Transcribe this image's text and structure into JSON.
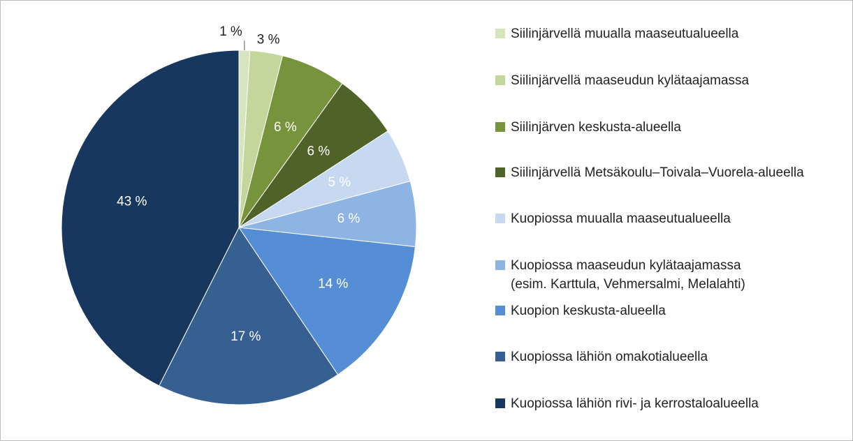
{
  "chart_data": {
    "type": "pie",
    "categories": [
      "Siilinjärvellä muualla maaseutualueella",
      "Siilinjärvellä maaseudun kylätaajamassa",
      "Siilinjärven keskusta-alueella",
      "Siilinjärvellä Metsäkoulu–Toivala–Vuorela-alueella",
      "Kuopiossa muualla maaseutualueella",
      "Kuopiossa maaseudun kylätaajamassa\n(esim. Karttula, Vehmersalmi, Melalahti)",
      "Kuopion keskusta-alueella",
      "Kuopiossa lähiön omakotialueella",
      "Kuopiossa lähiön rivi- ja kerrostaloalueella"
    ],
    "values": [
      1,
      3,
      6,
      6,
      5,
      6,
      14,
      17,
      43
    ],
    "value_labels": [
      "1 %",
      "3 %",
      "6 %",
      "6 %",
      "5 %",
      "6 %",
      "14 %",
      "17 %",
      "43 %"
    ],
    "colors": [
      "#d7e4bd",
      "#c3d69b",
      "#77933c",
      "#4f6228",
      "#c6d9f1",
      "#8eb4e3",
      "#558ed5",
      "#376092",
      "#17375e"
    ],
    "legend": "right"
  }
}
